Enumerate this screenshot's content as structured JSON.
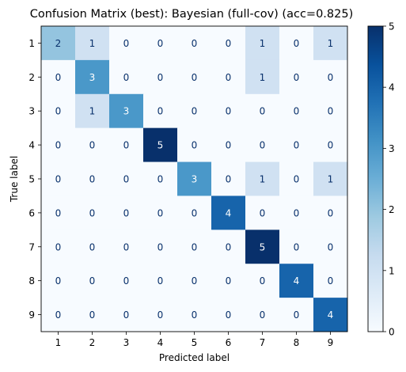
{
  "chart_data": {
    "type": "heatmap",
    "title": "Confusion Matrix (best): Bayesian (full-cov) (acc=0.825)",
    "xlabel": "Predicted label",
    "ylabel": "True label",
    "x_categories": [
      "1",
      "2",
      "3",
      "4",
      "5",
      "6",
      "7",
      "8",
      "9"
    ],
    "y_categories": [
      "1",
      "2",
      "3",
      "4",
      "5",
      "6",
      "7",
      "8",
      "9"
    ],
    "values": [
      [
        2,
        1,
        0,
        0,
        0,
        0,
        1,
        0,
        1
      ],
      [
        0,
        3,
        0,
        0,
        0,
        0,
        1,
        0,
        0
      ],
      [
        0,
        1,
        3,
        0,
        0,
        0,
        0,
        0,
        0
      ],
      [
        0,
        0,
        0,
        5,
        0,
        0,
        0,
        0,
        0
      ],
      [
        0,
        0,
        0,
        0,
        3,
        0,
        1,
        0,
        1
      ],
      [
        0,
        0,
        0,
        0,
        0,
        4,
        0,
        0,
        0
      ],
      [
        0,
        0,
        0,
        0,
        0,
        0,
        5,
        0,
        0
      ],
      [
        0,
        0,
        0,
        0,
        0,
        0,
        0,
        4,
        0
      ],
      [
        0,
        0,
        0,
        0,
        0,
        0,
        0,
        0,
        4
      ]
    ],
    "colormap": "Blues",
    "colorbar": {
      "range": [
        0,
        5
      ],
      "ticks": [
        "0",
        "1",
        "2",
        "3",
        "4",
        "5"
      ]
    },
    "grid": false
  }
}
